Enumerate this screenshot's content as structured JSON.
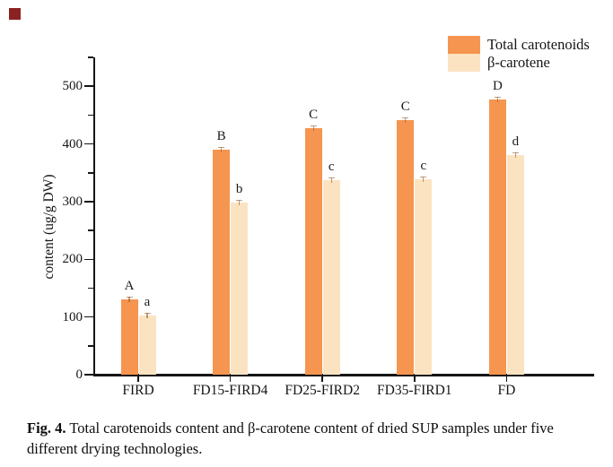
{
  "marker": {
    "color": "#8b2121"
  },
  "chart_data": {
    "type": "bar",
    "title": "",
    "categories": [
      "FIRD",
      "FD15-FIRD4",
      "FD25-FIRD2",
      "FD35-FIRD1",
      "FD"
    ],
    "series": [
      {
        "name": "Total carotenoids",
        "color": "#F59550",
        "values": [
          130,
          390,
          427,
          442,
          477
        ],
        "sig_letters": [
          "A",
          "B",
          "C",
          "C",
          "D"
        ]
      },
      {
        "name": "β-carotene",
        "color": "#FBE3C2",
        "values": [
          103,
          299,
          337,
          339,
          381
        ],
        "sig_letters": [
          "a",
          "b",
          "c",
          "c",
          "d"
        ]
      }
    ],
    "xlabel": "",
    "ylabel": "content (ug/g DW)",
    "ylim": [
      0,
      550
    ],
    "yticks": [
      0,
      100,
      200,
      300,
      400,
      500
    ],
    "minor_tick_step": 50,
    "grid": false,
    "legend_position": "top-right",
    "error_bars": true
  },
  "caption": {
    "label": "Fig. 4.",
    "text": "Total carotenoids content and β-carotene content of dried SUP samples under five different drying technologies."
  }
}
